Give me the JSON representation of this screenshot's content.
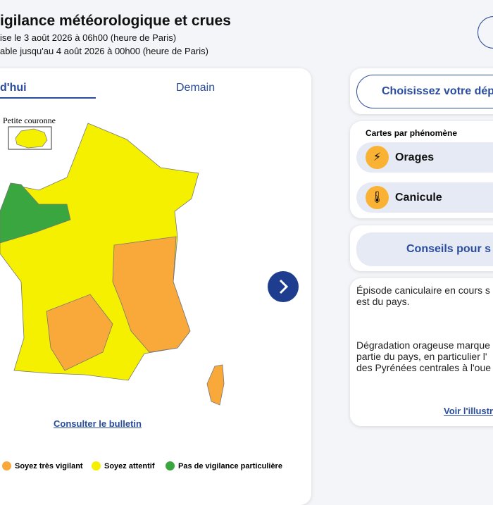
{
  "header": {
    "title": "igilance météorologique et crues",
    "lines": [
      "ise le 3 août 2026 à 06h00 (heure de Paris)",
      "able jusqu'au 4 août 2026 à 00h00 (heure de Paris)"
    ]
  },
  "tabs": [
    "d'hui",
    "Demain"
  ],
  "map": {
    "inset_label": "Petite couronne",
    "bulletin_link": "Consulter le bulletin"
  },
  "legend": [
    "Soyez très vigilant",
    "Soyez attentif",
    "Pas de vigilance particulière"
  ],
  "panel": {
    "department_button": "Choisissez votre dép",
    "phenomena": {
      "title": "Cartes par phénomène",
      "items": [
        "Orages",
        "Canicule"
      ]
    },
    "advice_button": "Conseils pour s",
    "text": [
      [
        "Épisode caniculaire en cours s",
        "est du pays."
      ],
      [
        "Dégradation orageuse marque",
        "partie du pays, en particulier l'",
        "des Pyrénées centrales à l'oue"
      ]
    ],
    "illustration_link": "Voir l'illustra"
  }
}
